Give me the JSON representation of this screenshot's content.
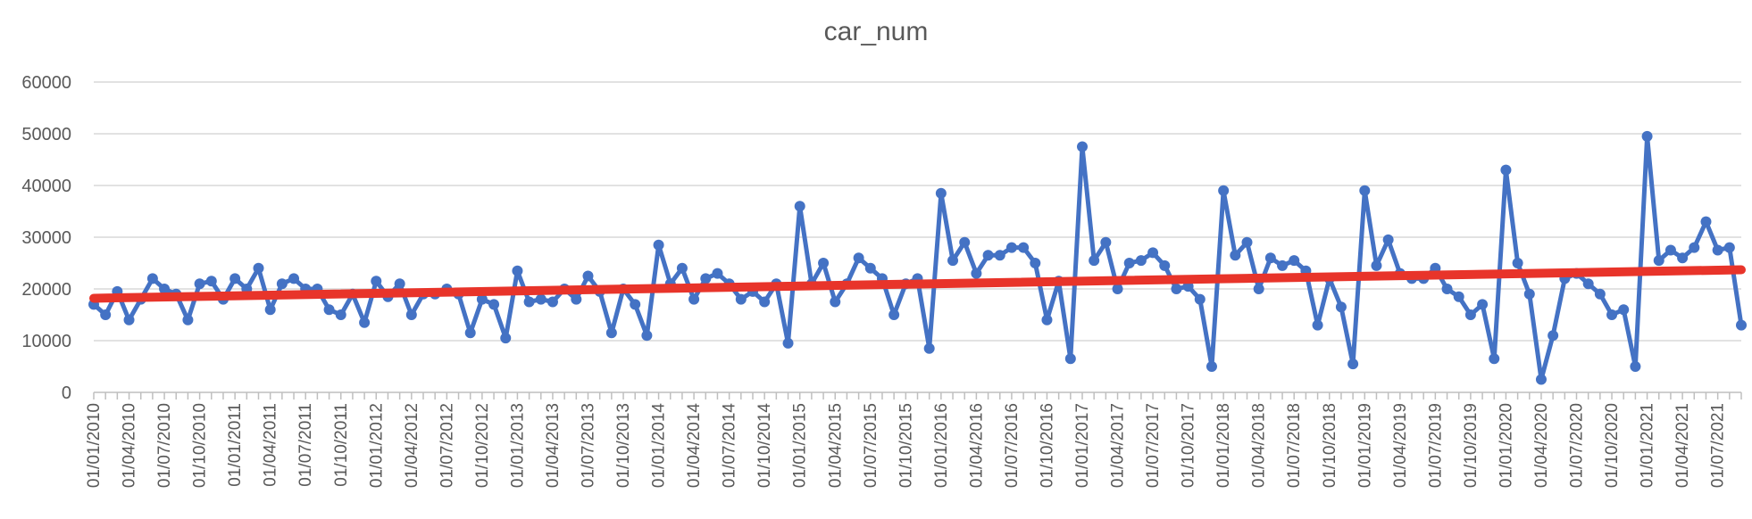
{
  "chart_data": {
    "type": "line",
    "title": "car_num",
    "xlabel": "",
    "ylabel": "",
    "ylim": [
      0,
      60000
    ],
    "yticks": [
      0,
      10000,
      20000,
      30000,
      40000,
      50000,
      60000
    ],
    "xtick_labels": [
      "01/01/2010",
      "01/04/2010",
      "01/07/2010",
      "01/10/2010",
      "01/01/2011",
      "01/04/2011",
      "01/07/2011",
      "01/10/2011",
      "01/01/2012",
      "01/04/2012",
      "01/07/2012",
      "01/10/2012",
      "01/01/2013",
      "01/04/2013",
      "01/07/2013",
      "01/10/2013",
      "01/01/2014",
      "01/04/2014",
      "01/07/2014",
      "01/10/2014",
      "01/01/2015",
      "01/04/2015",
      "01/07/2015",
      "01/10/2015",
      "01/01/2016",
      "01/04/2016",
      "01/07/2016",
      "01/10/2016",
      "01/01/2017",
      "01/04/2017",
      "01/07/2017",
      "01/10/2017",
      "01/01/2018",
      "01/04/2018",
      "01/07/2018",
      "01/10/2018",
      "01/01/2019",
      "01/04/2019",
      "01/07/2019",
      "01/10/2019",
      "01/01/2020",
      "01/04/2020",
      "01/07/2020",
      "01/10/2020",
      "01/01/2021",
      "01/04/2021",
      "01/07/2021"
    ],
    "grid": true,
    "legend": "none",
    "x_start": "01/01/2010",
    "x_frequency": "monthly",
    "series": [
      {
        "name": "",
        "color": "#4472C4",
        "values": [
          17000,
          15000,
          19500,
          14000,
          18000,
          22000,
          20000,
          19000,
          14000,
          21000,
          21500,
          18000,
          22000,
          20000,
          24000,
          16000,
          21000,
          22000,
          20000,
          20000,
          16000,
          15000,
          19000,
          13500,
          21500,
          18500,
          21000,
          15000,
          19000,
          19000,
          20000,
          19000,
          11500,
          18000,
          17000,
          10500,
          23500,
          17500,
          18000,
          17500,
          20000,
          18000,
          22500,
          19500,
          11500,
          20000,
          17000,
          11000,
          28500,
          21000,
          24000,
          18000,
          22000,
          23000,
          21000,
          18000,
          19500,
          17500,
          21000,
          9500,
          36000,
          21000,
          25000,
          17500,
          21000,
          26000,
          24000,
          22000,
          15000,
          21000,
          22000,
          8500,
          38500,
          25500,
          29000,
          23000,
          26500,
          26500,
          28000,
          28000,
          25000,
          14000,
          21500,
          6500,
          47500,
          25500,
          29000,
          20000,
          25000,
          25500,
          27000,
          24500,
          20000,
          20500,
          18000,
          5000,
          39000,
          26500,
          29000,
          20000,
          26000,
          24500,
          25500,
          23500,
          13000,
          22000,
          16500,
          5500,
          39000,
          24500,
          29500,
          23000,
          22000,
          22000,
          24000,
          20000,
          18500,
          15000,
          17000,
          6500,
          43000,
          25000,
          19000,
          2500,
          11000,
          22000,
          23000,
          21000,
          19000,
          15000,
          16000,
          5000,
          49500,
          25500,
          27500,
          26000,
          28000,
          33000,
          27500,
          28000,
          13000
        ]
      }
    ],
    "trendline": {
      "color": "#E8342A",
      "start": 18200,
      "end": 23700
    }
  }
}
